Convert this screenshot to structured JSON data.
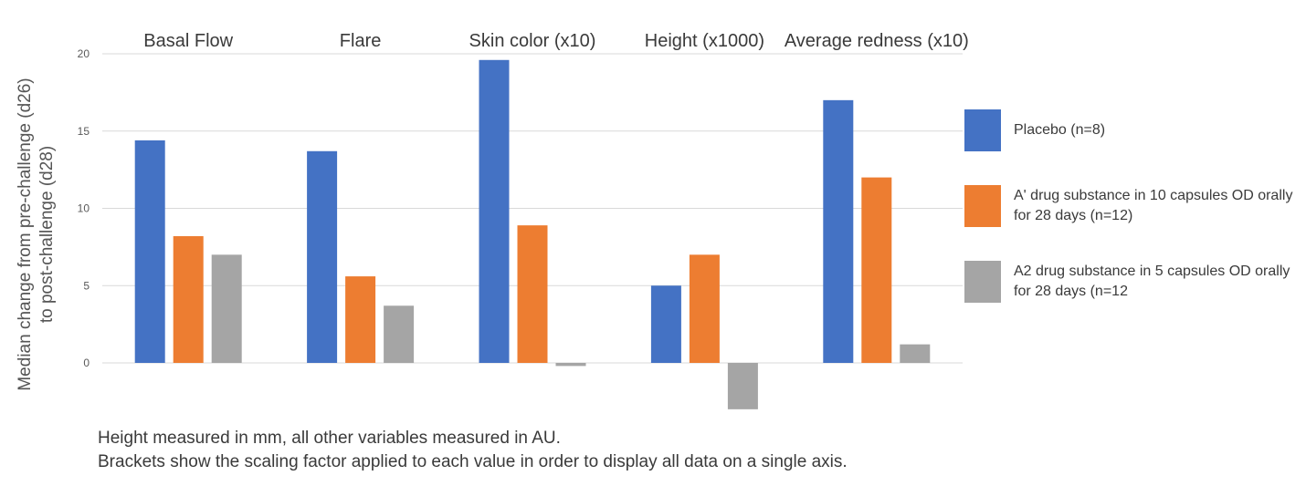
{
  "chart_data": {
    "type": "bar",
    "title": "",
    "ylabel": "Median change  from pre-challenge (d26) to post-challenge (d28)",
    "ylabel_lines": [
      "Median change  from pre-challenge (d26)",
      "to post-challenge (d28)"
    ],
    "xlabel": "",
    "ylim": [
      -3,
      20
    ],
    "yticks": [
      0,
      5,
      10,
      15,
      20
    ],
    "grid": true,
    "legend_position": "right",
    "categories": [
      "Basal Flow",
      "Flare",
      "Skin color (x10)",
      "Height (x1000)",
      "Average redness (x10)"
    ],
    "series": [
      {
        "name": "Placebo (n=8)",
        "values": [
          14.4,
          13.7,
          19.6,
          5.0,
          17.0
        ]
      },
      {
        "name": "A' drug substance in 10 capsules OD orally for 28 days (n=12)",
        "values": [
          8.2,
          5.6,
          8.9,
          7.0,
          12.0
        ]
      },
      {
        "name": "A2 drug substance in 5 capsules OD orally for 28 days (n=12",
        "values": [
          7.0,
          3.7,
          -0.2,
          -3.0,
          1.2
        ]
      }
    ],
    "colors": [
      "#4472c4",
      "#ed7d31",
      "#a5a5a5"
    ]
  },
  "legend": {
    "items": [
      {
        "label": "Placebo (n=8)",
        "color": "#4472c4"
      },
      {
        "label": "A' drug substance in 10 capsules OD orally for 28 days (n=12)",
        "color": "#ed7d31"
      },
      {
        "label": "A2 drug substance in 5 capsules OD orally for 28 days (n=12",
        "color": "#a5a5a5"
      }
    ]
  },
  "notes": {
    "line1": "Height measured in mm, all other variables measured in AU.",
    "line2": "Brackets show the scaling factor applied to each value in order to display all data on a single axis."
  },
  "colors": {
    "gridline": "#d9d9d9",
    "tick_text": "#595959",
    "category_text": "#3a3a3a"
  }
}
